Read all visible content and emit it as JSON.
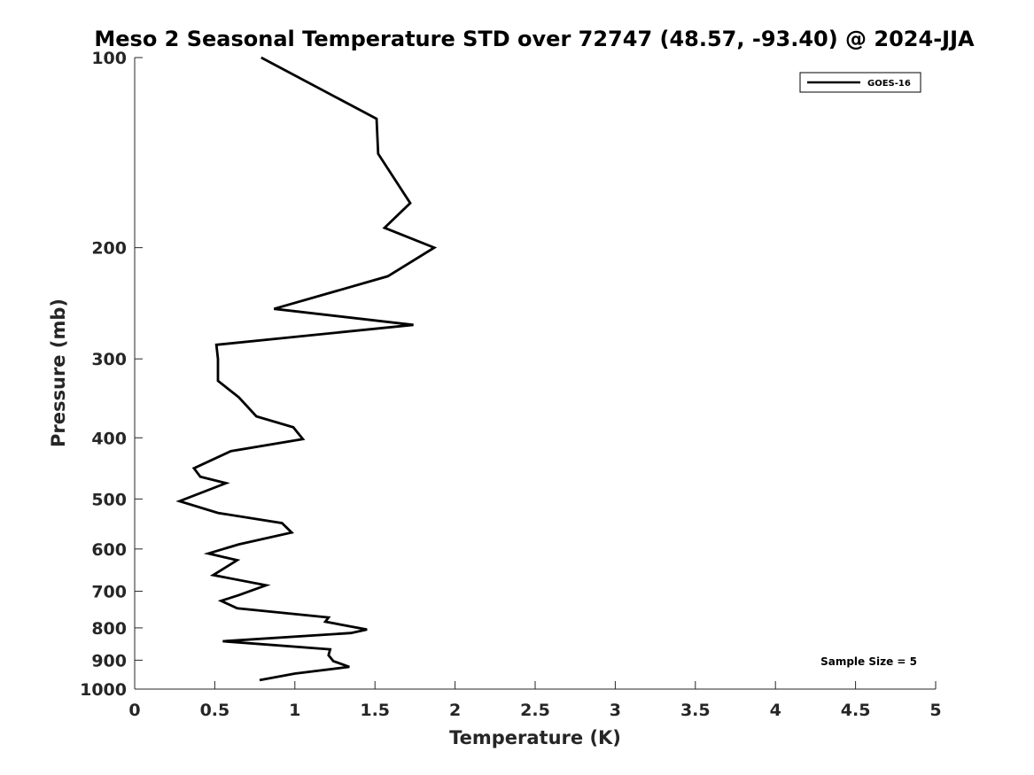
{
  "chart_data": {
    "type": "line",
    "title": "Meso 2 Seasonal Temperature STD over 72747 (48.57, -93.40) @ 2024-JJA",
    "xlabel": "Temperature (K)",
    "ylabel": "Pressure (mb)",
    "xlim": [
      0,
      5
    ],
    "ylim": [
      1000,
      100
    ],
    "y_scale": "log",
    "y_reversed": true,
    "grid": false,
    "legend_position": "top-right",
    "x_ticks": [
      "0",
      "0.5",
      "1",
      "1.5",
      "2",
      "2.5",
      "3",
      "3.5",
      "4",
      "4.5",
      "5"
    ],
    "y_ticks": [
      "100",
      "200",
      "300",
      "400",
      "500",
      "600",
      "700",
      "800",
      "900",
      "1000"
    ],
    "series": [
      {
        "name": "GOES-16",
        "color": "#000000",
        "points": [
          [
            0.79,
            100
          ],
          [
            1.51,
            125
          ],
          [
            1.52,
            142
          ],
          [
            1.72,
            170
          ],
          [
            1.56,
            186
          ],
          [
            1.87,
            200
          ],
          [
            1.58,
            222
          ],
          [
            0.87,
            250
          ],
          [
            1.74,
            265
          ],
          [
            0.51,
            285
          ],
          [
            0.52,
            300
          ],
          [
            0.52,
            325
          ],
          [
            0.65,
            345
          ],
          [
            0.76,
            370
          ],
          [
            0.99,
            385
          ],
          [
            1.05,
            402
          ],
          [
            0.6,
            420
          ],
          [
            0.37,
            447
          ],
          [
            0.41,
            461
          ],
          [
            0.57,
            472
          ],
          [
            0.28,
            504
          ],
          [
            0.52,
            526
          ],
          [
            0.92,
            546
          ],
          [
            0.98,
            565
          ],
          [
            0.65,
            590
          ],
          [
            0.46,
            610
          ],
          [
            0.64,
            625
          ],
          [
            0.49,
            660
          ],
          [
            0.82,
            685
          ],
          [
            0.65,
            710
          ],
          [
            0.54,
            725
          ],
          [
            0.64,
            745
          ],
          [
            1.21,
            770
          ],
          [
            1.19,
            782
          ],
          [
            1.45,
            805
          ],
          [
            1.35,
            815
          ],
          [
            0.55,
            840
          ],
          [
            1.22,
            865
          ],
          [
            1.21,
            884
          ],
          [
            1.24,
            903
          ],
          [
            1.34,
            922
          ],
          [
            1.0,
            945
          ],
          [
            0.78,
            968
          ]
        ]
      }
    ],
    "annotation": "Sample Size = 5"
  }
}
